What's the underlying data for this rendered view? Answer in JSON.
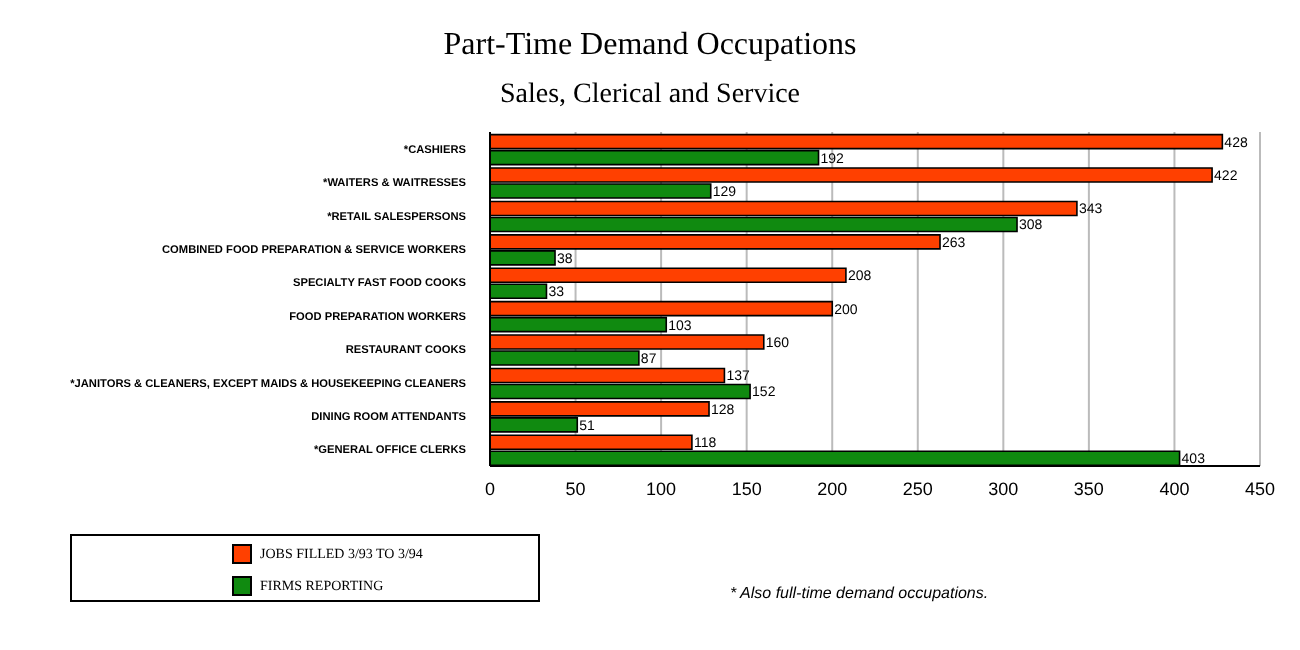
{
  "chart_data": {
    "type": "bar",
    "orientation": "horizontal",
    "title": "Part-Time Demand Occupations",
    "subtitle": "Sales, Clerical and Service",
    "categories": [
      "*CASHIERS",
      "*WAITERS & WAITRESSES",
      "*RETAIL SALESPERSONS",
      "COMBINED FOOD PREPARATION & SERVICE WORKERS",
      "SPECIALTY FAST FOOD COOKS",
      "FOOD PREPARATION WORKERS",
      "RESTAURANT COOKS",
      "*JANITORS & CLEANERS, EXCEPT MAIDS & HOUSEKEEPING CLEANERS",
      "DINING ROOM ATTENDANTS",
      "*GENERAL OFFICE CLERKS"
    ],
    "series": [
      {
        "name": "JOBS FILLED 3/93 TO 3/94",
        "color": "#ff4000",
        "values": [
          428,
          422,
          343,
          263,
          208,
          200,
          160,
          137,
          128,
          118
        ]
      },
      {
        "name": "FIRMS REPORTING",
        "color": "#108a10",
        "values": [
          192,
          129,
          308,
          38,
          33,
          103,
          87,
          152,
          51,
          403
        ]
      }
    ],
    "xlim": [
      0,
      450
    ],
    "xticks": [
      0,
      50,
      100,
      150,
      200,
      250,
      300,
      350,
      400,
      450
    ],
    "grid": "x",
    "legend": "bottom left",
    "data_labels": true,
    "annotations": [
      "* Also full-time demand occupations."
    ]
  }
}
